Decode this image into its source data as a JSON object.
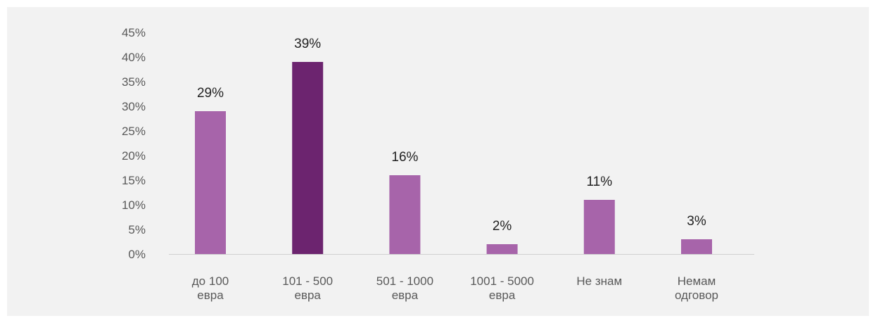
{
  "chart_data": {
    "type": "bar",
    "categories": [
      [
        "до 100",
        "евра"
      ],
      [
        "101 - 500",
        "евра"
      ],
      [
        "501 - 1000",
        "евра"
      ],
      [
        "1001 - 5000",
        "евра"
      ],
      [
        "Не знам"
      ],
      [
        "Немам",
        "одговор"
      ]
    ],
    "values": [
      29,
      39,
      16,
      2,
      11,
      3
    ],
    "value_labels": [
      "29%",
      "39%",
      "16%",
      "2%",
      "11%",
      "3%"
    ],
    "y_ticks": [
      "0%",
      "5%",
      "10%",
      "15%",
      "20%",
      "25%",
      "30%",
      "35%",
      "40%",
      "45%"
    ],
    "ylim": [
      0,
      45
    ],
    "highlight_index": 1,
    "colors": {
      "bar": "#a764aa",
      "highlight": "#6c246f",
      "axis": "#d0d0d0",
      "background": "#f2f2f2"
    },
    "grid": false,
    "legend": "none"
  }
}
